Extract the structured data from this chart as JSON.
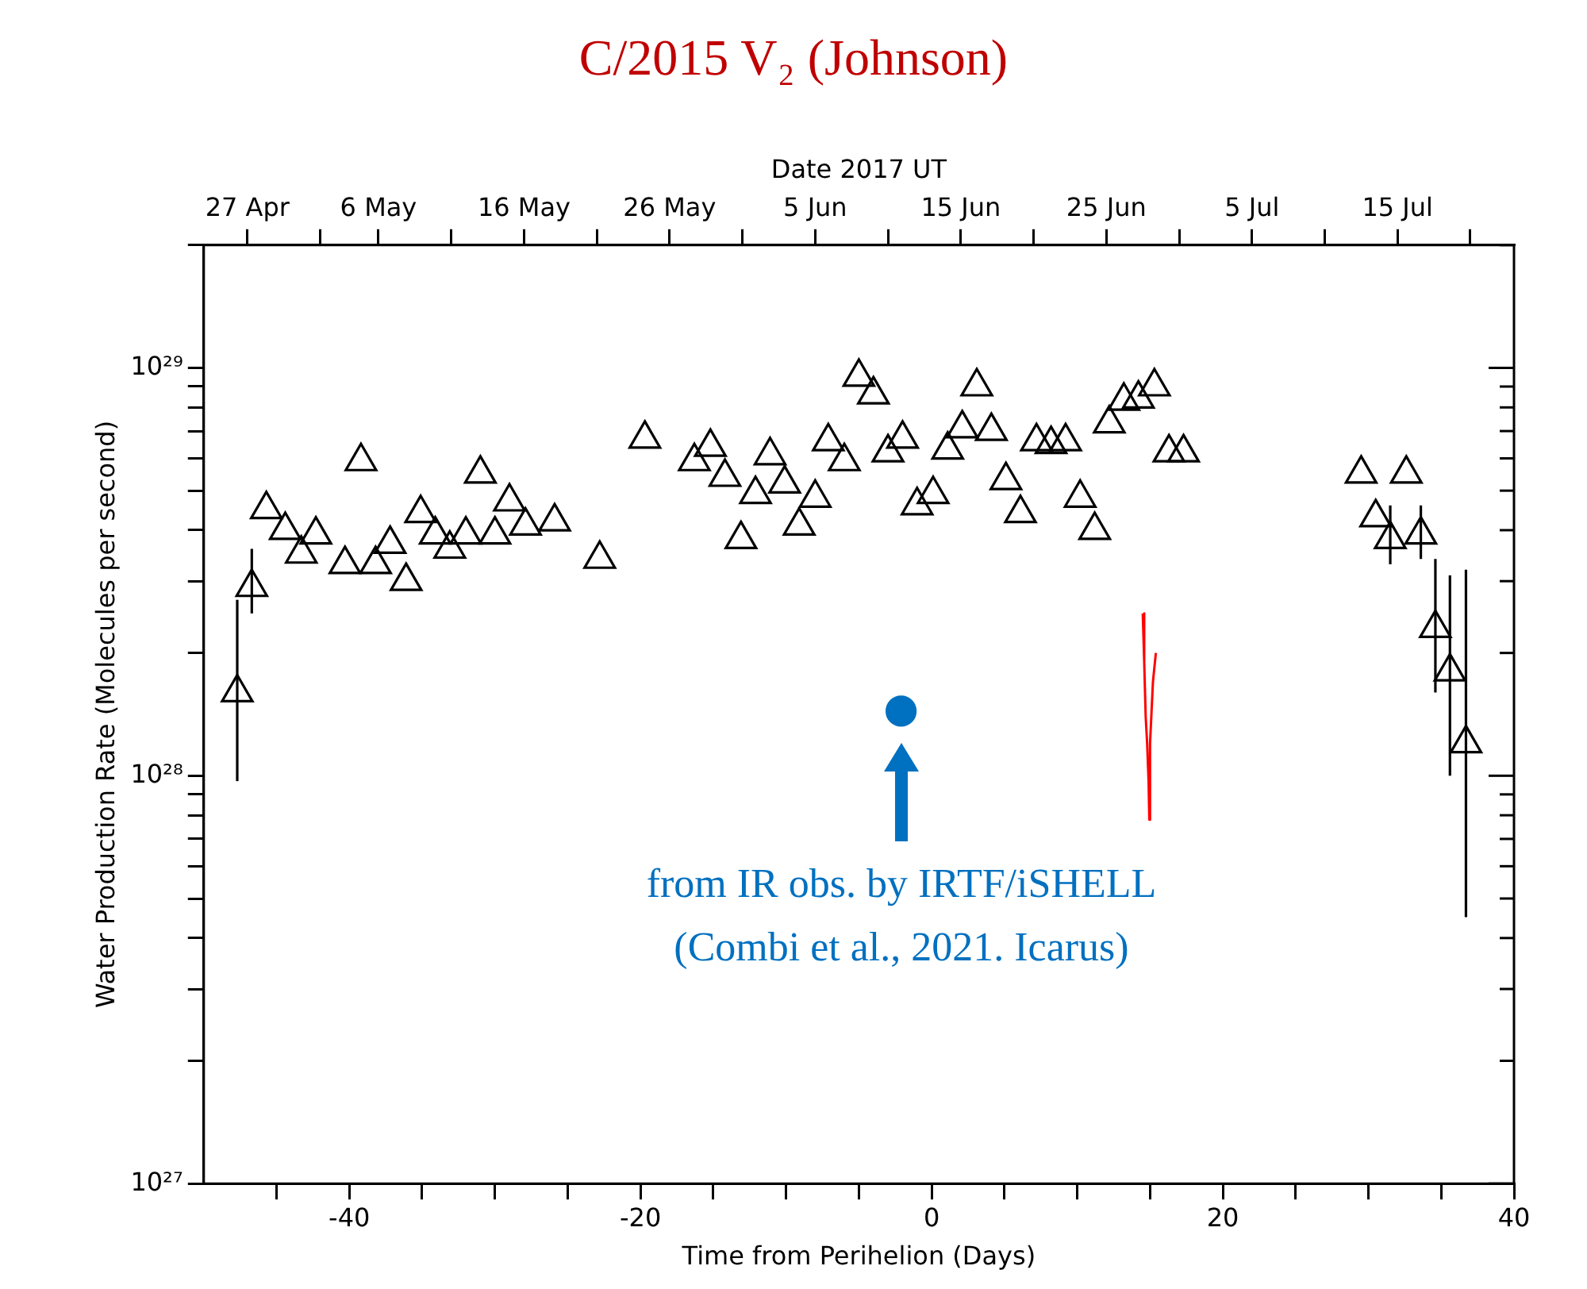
{
  "chart_data": {
    "type": "scatter",
    "title": "C/2015 V₂ (Johnson)",
    "xlabel": "Time from Perihelion (Days)",
    "x2label": "Date 2017 UT",
    "ylabel": "Water Production Rate (Molecules per second)",
    "log": "y",
    "legend": false,
    "xlim": [
      -50,
      40
    ],
    "xticks": [
      {
        "value": -45,
        "label": null
      },
      -40,
      {
        "value": -35,
        "label": null
      },
      {
        "value": -30,
        "label": null
      },
      {
        "value": -25,
        "label": null
      },
      -20,
      {
        "value": -15,
        "label": null
      },
      {
        "value": -10,
        "label": null
      },
      {
        "value": -5,
        "label": null
      },
      0,
      {
        "value": 5,
        "label": null
      },
      {
        "value": 10,
        "label": null
      },
      {
        "value": 15,
        "label": null
      },
      20,
      {
        "value": 25,
        "label": null
      },
      {
        "value": 30,
        "label": null
      },
      {
        "value": 35,
        "label": null
      },
      40
    ],
    "x2lim": [
      "--04-24",
      "--07-23"
    ],
    "x2ticks": [
      {
        "value": "--04-27",
        "label": "27 Apr"
      },
      {
        "value": "--05-02",
        "label": null
      },
      {
        "value": "--05-06",
        "label": "6 May"
      },
      {
        "value": "--05-11",
        "label": null
      },
      {
        "value": "--05-16",
        "label": "16 May"
      },
      {
        "value": "--05-21",
        "label": null
      },
      {
        "value": "--05-26",
        "label": "26 May"
      },
      {
        "value": "--05-31",
        "label": null
      },
      {
        "value": "--06-05",
        "label": "5 Jun"
      },
      {
        "value": "--06-10",
        "label": null
      },
      {
        "value": "--06-15",
        "label": "15 Jun"
      },
      {
        "value": "--06-20",
        "label": null
      },
      {
        "value": "--06-25",
        "label": "25 Jun"
      },
      {
        "value": "--06-30",
        "label": null
      },
      {
        "value": "--07-05",
        "label": "5 Jul"
      },
      {
        "value": "--07-10",
        "label": null
      },
      {
        "value": "--07-15",
        "label": "15 Jul"
      },
      {
        "value": "--07-20",
        "label": null
      }
    ],
    "ylim": [
      1e+27,
      2e+29
    ],
    "yticks": [
      {
        "value": 1e+27,
        "label": "10²⁷"
      },
      {
        "value": 2e+27,
        "label": null
      },
      {
        "value": 3e+27,
        "label": null
      },
      {
        "value": 4e+27,
        "label": null
      },
      {
        "value": 5e+27,
        "label": null
      },
      {
        "value": 6e+27,
        "label": null
      },
      {
        "value": 7e+27,
        "label": null
      },
      {
        "value": 8e+27,
        "label": null
      },
      {
        "value": 9e+27,
        "label": null
      },
      {
        "value": 1e+28,
        "label": "10²⁸"
      },
      {
        "value": 2e+28,
        "label": null
      },
      {
        "value": 3e+28,
        "label": null
      },
      {
        "value": 4e+28,
        "label": null
      },
      {
        "value": 5e+28,
        "label": null
      },
      {
        "value": 6e+28,
        "label": null
      },
      {
        "value": 7e+28,
        "label": null
      },
      {
        "value": 8e+28,
        "label": null
      },
      {
        "value": 9e+28,
        "label": null
      },
      {
        "value": 1e+29,
        "label": "10²⁹"
      },
      {
        "value": 2e+29,
        "label": null
      }
    ],
    "series": [
      {
        "marker": "triangle",
        "color": "#000000",
        "x": [
          -47.7,
          -46.7,
          -45.7,
          -44.4,
          -43.3,
          -42.3,
          -40.3,
          -39.2,
          -38.2,
          -37.2,
          -36.1,
          -35.1,
          -34.1,
          -33.1,
          -32.0,
          -31.0,
          -30.0,
          -29.0,
          -27.9,
          -25.9,
          -22.8,
          -19.7,
          -16.3,
          -15.2,
          -14.2,
          -13.1,
          -12.1,
          -11.1,
          -10.1,
          -9.1,
          -8.0,
          -7.1,
          -6.0,
          -5.0,
          -4.0,
          -3.0,
          -2.0,
          -1.0,
          0.1,
          1.1,
          2.1,
          3.1,
          4.1,
          5.1,
          6.1,
          7.2,
          8.2,
          9.2,
          10.2,
          11.2,
          12.2,
          13.2,
          14.2,
          15.3,
          16.3,
          17.3,
          29.5,
          30.5,
          31.5,
          32.6,
          33.6,
          34.6,
          35.6,
          36.7
        ],
        "values": [
          1.6e+28,
          2.9e+28,
          4.5e+28,
          4e+28,
          3.5e+28,
          3.9e+28,
          3.3e+28,
          5.9e+28,
          3.3e+28,
          3.7e+28,
          3e+28,
          4.4e+28,
          3.9e+28,
          3.6e+28,
          3.9e+28,
          5.5e+28,
          3.9e+28,
          4.7e+28,
          4.1e+28,
          4.2e+28,
          3.4e+28,
          6.7e+28,
          5.9e+28,
          6.4e+28,
          5.4e+28,
          3.8e+28,
          4.9e+28,
          6.1e+28,
          5.2e+28,
          4.1e+28,
          4.8e+28,
          6.6e+28,
          5.9e+28,
          9.5e+28,
          8.6e+28,
          6.2e+28,
          6.7e+28,
          4.6e+28,
          4.9e+28,
          6.3e+28,
          7.1e+28,
          9e+28,
          7e+28,
          5.3e+28,
          4.4e+28,
          6.6e+28,
          6.5e+28,
          6.6e+28,
          4.8e+28,
          4e+28,
          7.3e+28,
          8.3e+28,
          8.4e+28,
          9e+28,
          6.2e+28,
          6.2e+28,
          5.5e+28,
          4.3e+28,
          3.8e+28,
          5.5e+28,
          3.9e+28,
          2.3e+28,
          1.8e+28,
          1.2e+28
        ],
        "errors": [
          [
            9.7e+27,
            2.7e+28
          ],
          [
            2.5e+28,
            3.6e+28
          ],
          null,
          null,
          null,
          null,
          null,
          null,
          null,
          null,
          null,
          null,
          null,
          null,
          null,
          null,
          null,
          null,
          null,
          null,
          null,
          null,
          null,
          null,
          null,
          null,
          null,
          null,
          null,
          null,
          null,
          null,
          null,
          null,
          null,
          null,
          null,
          null,
          null,
          null,
          null,
          null,
          null,
          null,
          null,
          null,
          null,
          null,
          null,
          null,
          null,
          null,
          null,
          null,
          null,
          null,
          null,
          null,
          [
            3.3e+28,
            4.6e+28
          ],
          null,
          [
            3.4e+28,
            4.6e+28
          ],
          [
            1.6e+28,
            3.4e+28
          ],
          [
            1e+28,
            3.1e+28
          ],
          [
            4.5e+27,
            3.2e+28
          ]
        ]
      },
      {
        "type": "line",
        "marker": "none",
        "color": "#ff0000",
        "x": [
          14.5,
          14.6,
          14.7,
          14.8,
          14.9,
          14.95,
          15.0,
          15.2,
          15.4
        ],
        "values": [
          2.5e+28,
          1.9e+28,
          1.4e+28,
          1.2e+28,
          9.7e+27,
          7.8e+27,
          1.2e+28,
          1.7e+28,
          2e+28
        ]
      },
      {
        "marker": "circle",
        "color": "#0070c0",
        "x": [
          -2.1
        ],
        "values": [
          1.44e+28
        ]
      }
    ],
    "annotations": [
      "from IR obs. by IRTF/iSHELL",
      "(Combi et al., 2021. Icarus)"
    ]
  }
}
